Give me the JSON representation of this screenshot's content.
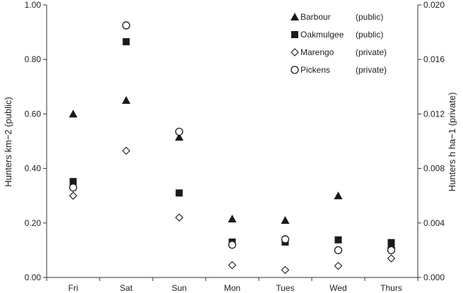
{
  "chart_data": {
    "type": "scatter",
    "categories": [
      "Fri",
      "Sat",
      "Sun",
      "Mon",
      "Tues",
      "Wed",
      "Thurs"
    ],
    "y_left": {
      "label": "Hunters km−2 (public)",
      "ylim": [
        0.0,
        1.0
      ],
      "ticks": [
        0.0,
        0.2,
        0.4,
        0.6,
        0.8,
        1.0
      ],
      "tick_labels": [
        "0.00",
        "0.20",
        "0.40",
        "0.60",
        "0.80",
        "1.00"
      ]
    },
    "y_right": {
      "label": "Hunters h ha−1 (private)",
      "ylim": [
        0.0,
        0.02
      ],
      "ticks": [
        0.0,
        0.004,
        0.008,
        0.012,
        0.016,
        0.02
      ],
      "tick_labels": [
        "0.000",
        "0.004",
        "0.008",
        "0.012",
        "0.016",
        "0.020"
      ]
    },
    "grid": false,
    "legend_position": "top-right",
    "series": [
      {
        "name": "Barbour",
        "type_label": "(public)",
        "axis": "left",
        "marker": "filled-triangle",
        "values": [
          0.6,
          0.65,
          0.515,
          0.215,
          0.21,
          0.3,
          0.12
        ]
      },
      {
        "name": "Oakmulgee",
        "type_label": "(public)",
        "axis": "left",
        "marker": "filled-square",
        "values": [
          0.352,
          0.865,
          0.31,
          0.13,
          0.13,
          0.138,
          0.128
        ]
      },
      {
        "name": "Marengo",
        "type_label": "(private)",
        "axis": "right",
        "marker": "open-diamond",
        "values": [
          0.006,
          0.0093,
          0.0044,
          0.0009,
          0.00055,
          0.00085,
          0.0014
        ]
      },
      {
        "name": "Pickens",
        "type_label": "(private)",
        "axis": "right",
        "marker": "open-circle",
        "values": [
          0.0066,
          0.0185,
          0.0107,
          0.0024,
          0.0028,
          0.002,
          0.002
        ]
      }
    ]
  },
  "colors": {
    "marker": "#1a1a1a",
    "axis": "#333333"
  }
}
